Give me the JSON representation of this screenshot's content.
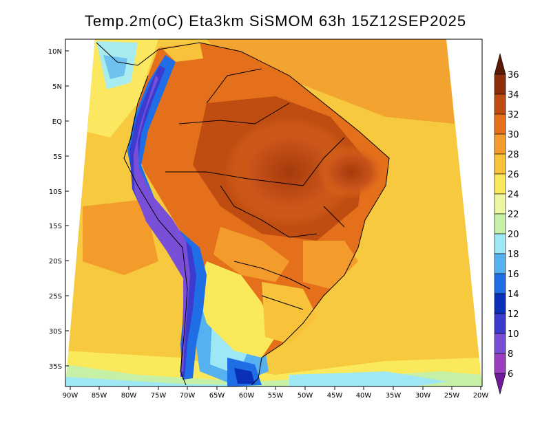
{
  "title": "Temp.2m(oC) Eta3km SiSMOM 63h 15Z12SEP2025",
  "lat_labels": [
    "10N",
    "5N",
    "EQ",
    "5S",
    "10S",
    "15S",
    "20S",
    "25S",
    "30S",
    "35S"
  ],
  "lon_labels": [
    "90W",
    "85W",
    "80W",
    "75W",
    "70W",
    "65W",
    "60W",
    "55W",
    "50W",
    "45W",
    "40W",
    "35W",
    "30W",
    "25W",
    "20W"
  ],
  "colorbar": {
    "unit": "oC",
    "labels": [
      "36",
      "34",
      "32",
      "30",
      "28",
      "26",
      "24",
      "22",
      "20",
      "18",
      "16",
      "14",
      "12",
      "10",
      "8",
      "6"
    ],
    "colors": [
      "#5c1a06",
      "#8e2f0c",
      "#bf4d12",
      "#e5701b",
      "#f39c2c",
      "#f8c23a",
      "#fbe95c",
      "#eef6a0",
      "#c6f0a6",
      "#9ee7f4",
      "#55b1f0",
      "#1f6ee6",
      "#0a2fb8",
      "#3b3bd0",
      "#7a4fd8",
      "#9b3fc0",
      "#6e1b9a"
    ]
  }
}
